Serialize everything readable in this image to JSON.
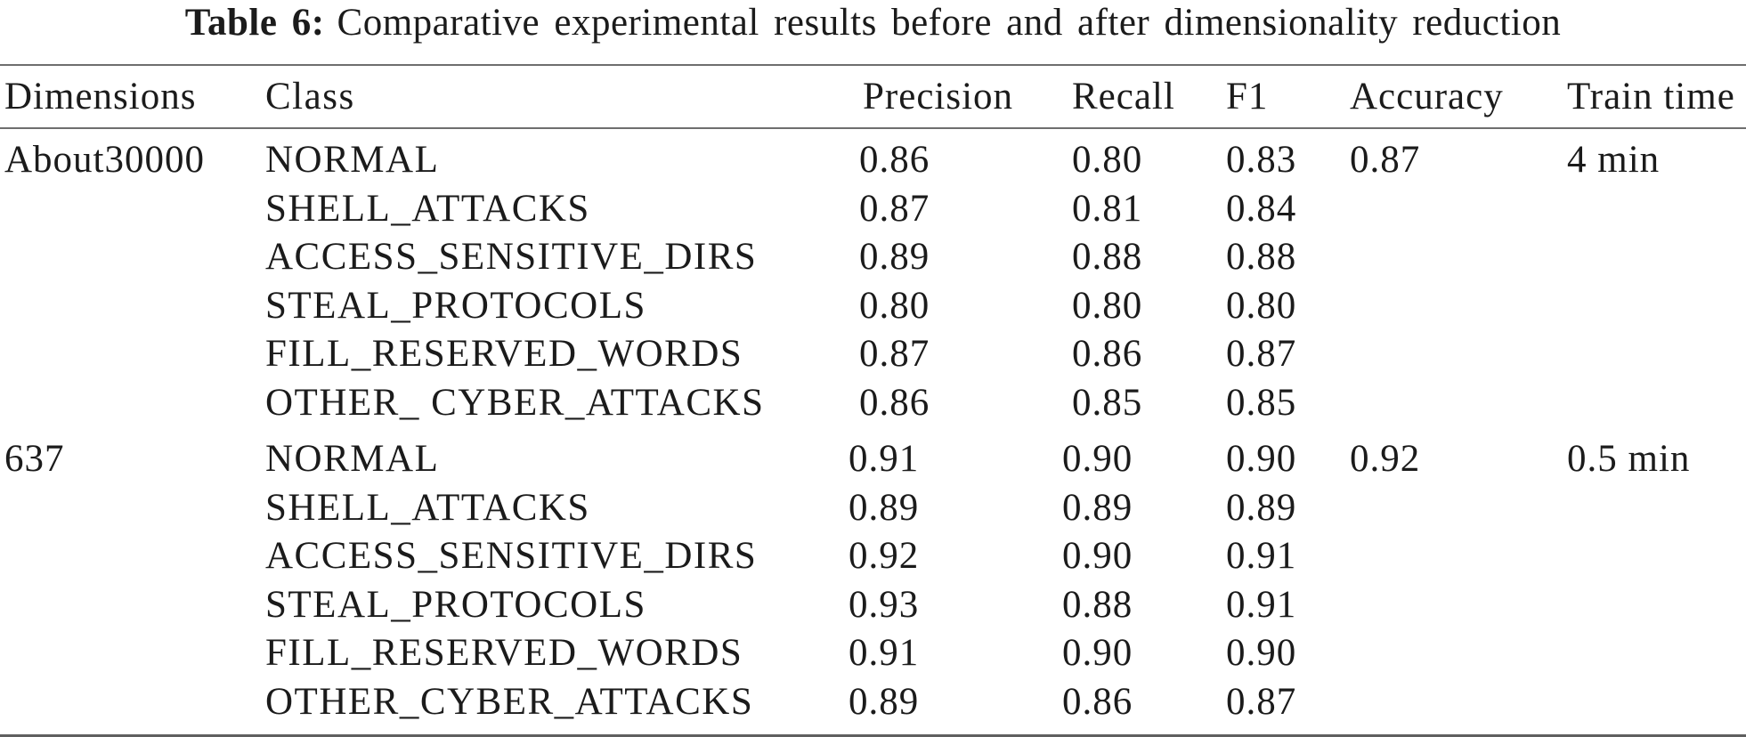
{
  "title": {
    "label": "Table 6:",
    "text": "Comparative experimental results before and after dimensionality reduction"
  },
  "columns": {
    "dimensions": "Dimensions",
    "class": "Class",
    "precision": "Precision",
    "recall": "Recall",
    "f1": "F1",
    "accuracy": "Accuracy",
    "train_time": "Train time"
  },
  "groups": [
    {
      "dimensions": "About30000",
      "accuracy": "0.87",
      "train_time": "4 min",
      "rows": [
        {
          "class": "NORMAL",
          "precision": "0.86",
          "recall": "0.80",
          "f1": "0.83"
        },
        {
          "class": "SHELL_ATTACKS",
          "precision": "0.87",
          "recall": "0.81",
          "f1": "0.84"
        },
        {
          "class": "ACCESS_SENSITIVE_DIRS",
          "precision": "0.89",
          "recall": "0.88",
          "f1": "0.88"
        },
        {
          "class": "STEAL_PROTOCOLS",
          "precision": "0.80",
          "recall": "0.80",
          "f1": "0.80"
        },
        {
          "class": "FILL_RESERVED_WORDS",
          "precision": "0.87",
          "recall": "0.86",
          "f1": "0.87"
        },
        {
          "class": "OTHER_ CYBER_ATTACKS",
          "precision": "0.86",
          "recall": "0.85",
          "f1": "0.85"
        }
      ]
    },
    {
      "dimensions": "637",
      "accuracy": "0.92",
      "train_time": "0.5 min",
      "rows": [
        {
          "class": "NORMAL",
          "precision": "0.91",
          "recall": "0.90",
          "f1": "0.90"
        },
        {
          "class": "SHELL_ATTACKS",
          "precision": "0.89",
          "recall": "0.89",
          "f1": "0.89"
        },
        {
          "class": "ACCESS_SENSITIVE_DIRS",
          "precision": "0.92",
          "recall": "0.90",
          "f1": "0.91"
        },
        {
          "class": "STEAL_PROTOCOLS",
          "precision": "0.93",
          "recall": "0.88",
          "f1": "0.91"
        },
        {
          "class": "FILL_RESERVED_WORDS",
          "precision": "0.91",
          "recall": "0.90",
          "f1": "0.90"
        },
        {
          "class": "OTHER_CYBER_ATTACKS",
          "precision": "0.89",
          "recall": "0.86",
          "f1": "0.87"
        }
      ]
    }
  ]
}
